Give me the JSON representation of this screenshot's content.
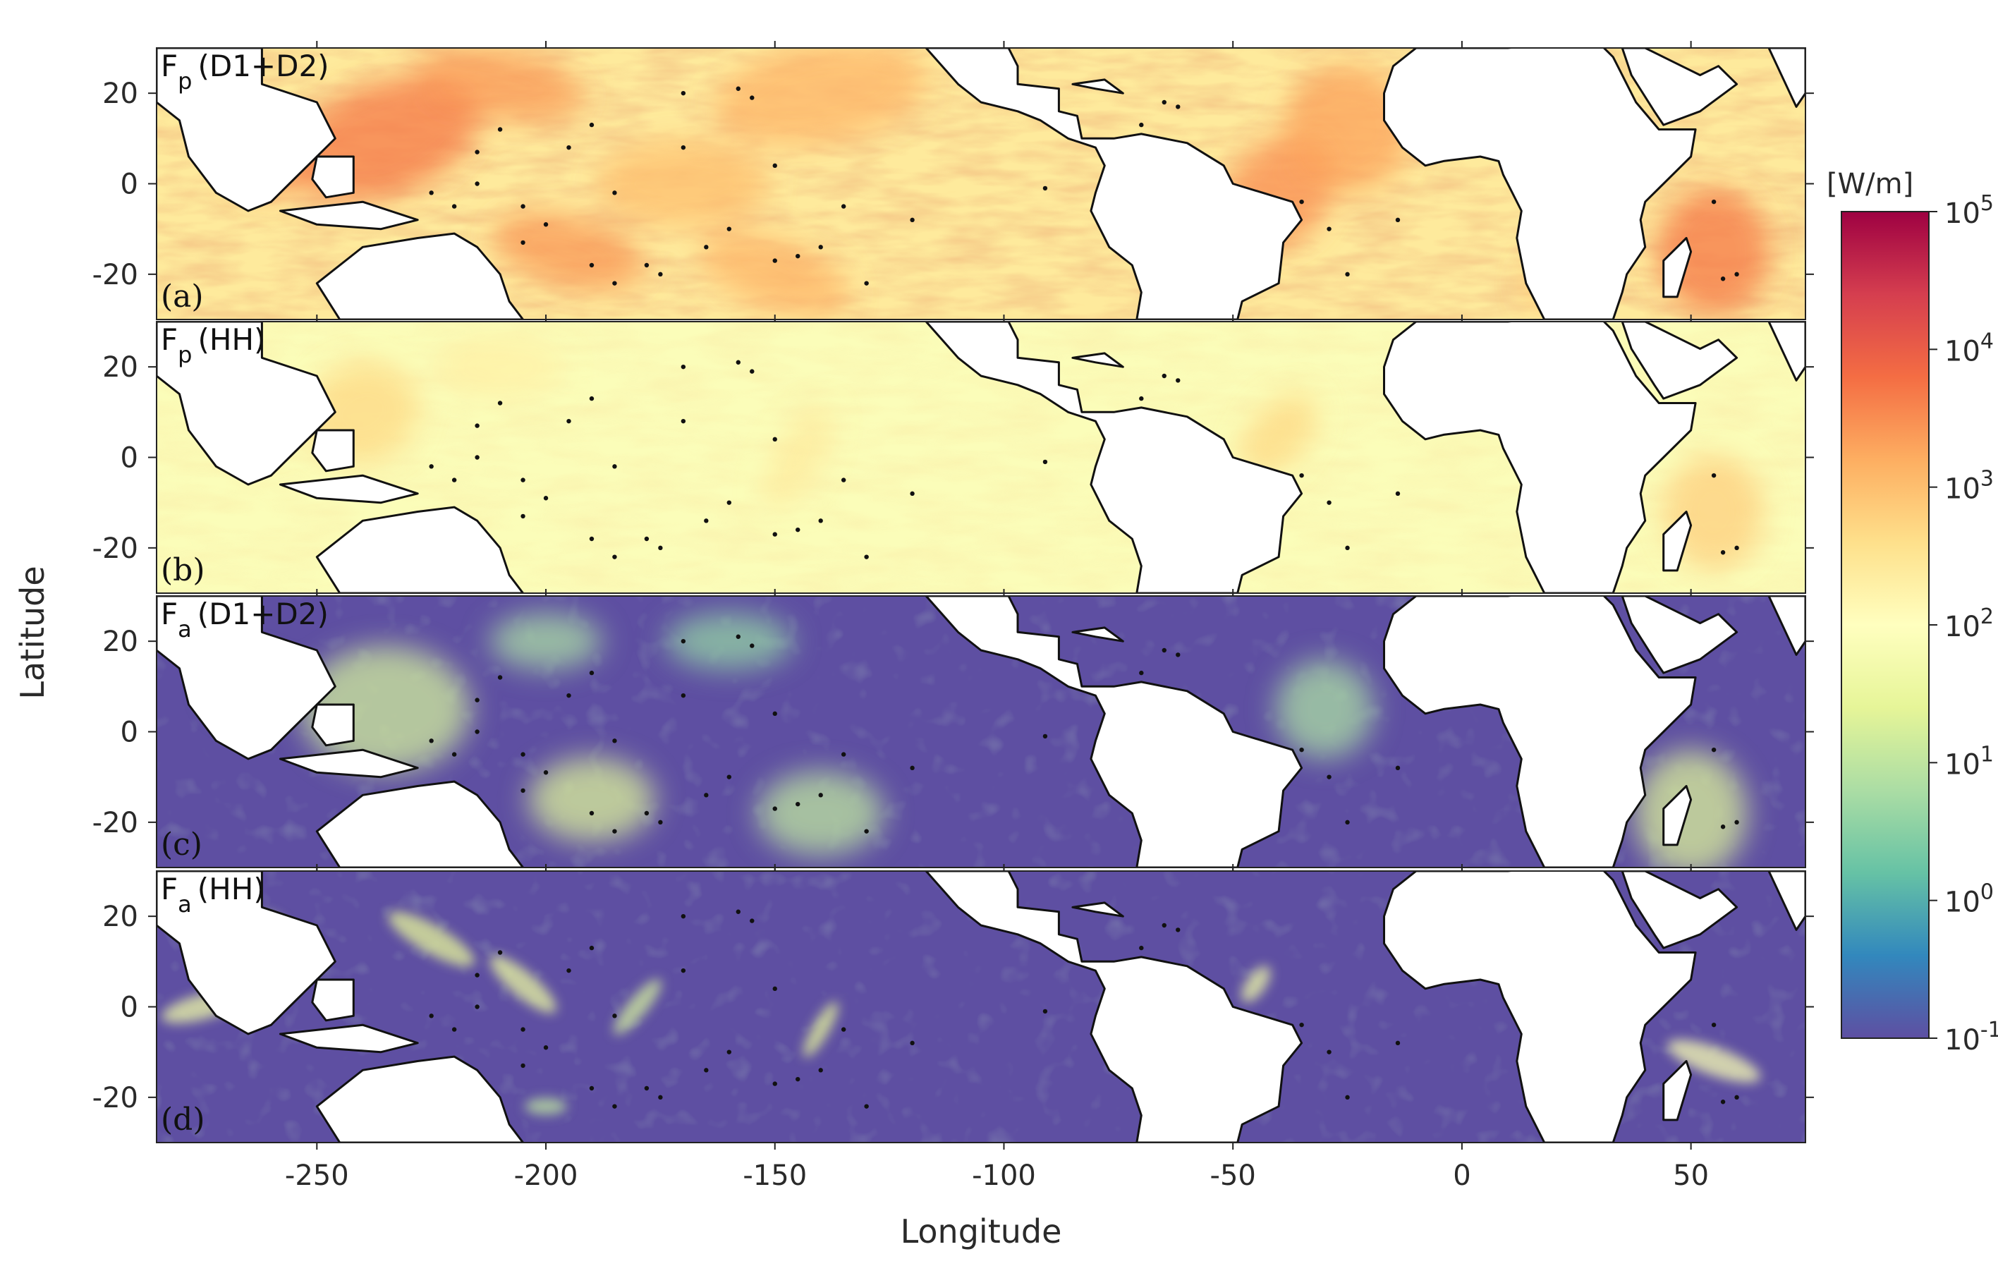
{
  "chart_data": {
    "type": "heatmap",
    "xlabel": "Longitude",
    "ylabel": "Latitude",
    "xlim": [
      -285,
      75
    ],
    "ylim": [
      -30,
      30
    ],
    "x_ticks": [
      -250,
      -200,
      -150,
      -100,
      -50,
      0,
      50
    ],
    "x_tick_labels": [
      "-250",
      "-200",
      "-150",
      "-100",
      "-50",
      "0",
      "50"
    ],
    "y_ticks": [
      20,
      0,
      -20
    ],
    "y_tick_labels": [
      "20",
      "0",
      "-20"
    ],
    "colorbar": {
      "unit": "[W/m]",
      "scale": "log",
      "range": [
        0.1,
        100000
      ],
      "tick_labels": [
        {
          "base": "10",
          "exp": "5"
        },
        {
          "base": "10",
          "exp": "4"
        },
        {
          "base": "10",
          "exp": "3"
        },
        {
          "base": "10",
          "exp": "2"
        },
        {
          "base": "10",
          "exp": "1"
        },
        {
          "base": "10",
          "exp": "0"
        },
        {
          "base": "10",
          "exp": "-1"
        }
      ],
      "colormap": "Spectral_r",
      "colors": [
        "#5e4fa2",
        "#3288bd",
        "#66c2a5",
        "#abdda4",
        "#e6f598",
        "#ffffbf",
        "#fee08b",
        "#fdae61",
        "#f46d43",
        "#d53e4f",
        "#9e0142"
      ]
    },
    "panels": [
      {
        "symbol": "F",
        "sub": "p",
        "label": "(D1+D2)",
        "letter": "(a)",
        "base_level": 2.4,
        "hotspots": "strong"
      },
      {
        "symbol": "F",
        "sub": "p",
        "label": "(HH)",
        "letter": "(b)",
        "base_level": 1.9,
        "hotspots": "medium"
      },
      {
        "symbol": "F",
        "sub": "a",
        "label": "(D1+D2)",
        "letter": "(c)",
        "base_level": -1.0,
        "hotspots": "speckle"
      },
      {
        "symbol": "F",
        "sub": "a",
        "label": "(HH)",
        "letter": "(d)",
        "base_level": -1.0,
        "hotspots": "streaks"
      }
    ]
  }
}
